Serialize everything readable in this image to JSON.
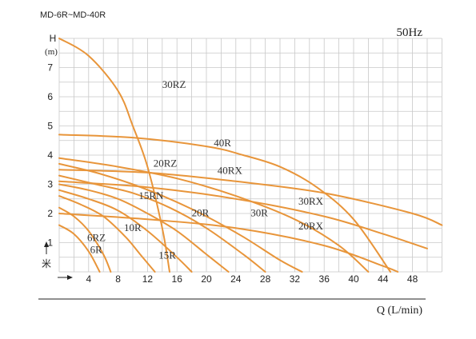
{
  "header": {
    "model_range": "MD-6R~MD-40R",
    "frequency": "50Hz"
  },
  "colors": {
    "curve": "#e8953a",
    "grid": "#c8c8c8",
    "text": "#222222"
  },
  "chart_data": {
    "type": "line",
    "title": "",
    "ylabel": "H",
    "yunit": "(m)",
    "ymeter_glyph": "米",
    "xlabel": "Q (L/min)",
    "xlim": [
      0,
      52
    ],
    "ylim": [
      0,
      8
    ],
    "xticks": [
      4,
      8,
      12,
      16,
      20,
      24,
      28,
      32,
      36,
      40,
      44,
      48
    ],
    "yticks": [
      1,
      2,
      3,
      4,
      5,
      6,
      7
    ],
    "grid": true,
    "series": [
      {
        "name": "6R",
        "x": [
          0,
          2,
          4,
          5.5
        ],
        "y": [
          1.6,
          1.3,
          0.7,
          0
        ]
      },
      {
        "name": "6RZ",
        "x": [
          0,
          2,
          4,
          6,
          7
        ],
        "y": [
          2.2,
          1.9,
          1.4,
          0.6,
          0
        ]
      },
      {
        "name": "10R",
        "x": [
          0,
          3,
          6,
          9,
          11,
          13
        ],
        "y": [
          2.6,
          2.3,
          1.9,
          1.2,
          0.6,
          0
        ]
      },
      {
        "name": "15R",
        "x": [
          0,
          4,
          8,
          12,
          16,
          18
        ],
        "y": [
          2.8,
          2.5,
          2.1,
          1.4,
          0.5,
          0
        ]
      },
      {
        "name": "15RN",
        "x": [
          0,
          4,
          8,
          12,
          16,
          20,
          23
        ],
        "y": [
          3.0,
          2.8,
          2.5,
          2.0,
          1.4,
          0.6,
          0
        ]
      },
      {
        "name": "20R",
        "x": [
          0,
          5,
          10,
          15,
          20,
          25,
          28
        ],
        "y": [
          3.3,
          3.0,
          2.7,
          2.2,
          1.5,
          0.6,
          0
        ]
      },
      {
        "name": "20RZ",
        "x": [
          0,
          5,
          10,
          15,
          20,
          25,
          30,
          33
        ],
        "y": [
          3.7,
          3.4,
          3.0,
          2.5,
          1.9,
          1.2,
          0.4,
          0
        ]
      },
      {
        "name": "30R",
        "x": [
          0,
          8,
          16,
          24,
          32,
          38,
          42
        ],
        "y": [
          3.9,
          3.6,
          3.2,
          2.6,
          1.8,
          0.9,
          0
        ]
      },
      {
        "name": "30RZ",
        "x": [
          0,
          4,
          8,
          10,
          12,
          14,
          15
        ],
        "y": [
          8.0,
          7.4,
          6.2,
          5.0,
          3.6,
          1.5,
          0
        ]
      },
      {
        "name": "40R",
        "x": [
          0,
          10,
          20,
          25,
          30,
          35,
          40,
          45
        ],
        "y": [
          4.7,
          4.6,
          4.3,
          4.0,
          3.6,
          2.9,
          1.8,
          0
        ]
      },
      {
        "name": "40RX",
        "x": [
          0,
          12,
          24,
          36,
          48,
          52
        ],
        "y": [
          3.5,
          3.4,
          3.1,
          2.7,
          2.0,
          1.6
        ]
      },
      {
        "name": "30RX",
        "x": [
          0,
          12,
          24,
          36,
          44,
          50
        ],
        "y": [
          3.1,
          2.9,
          2.5,
          1.9,
          1.3,
          0.8
        ]
      },
      {
        "name": "20RX",
        "x": [
          0,
          12,
          24,
          36,
          44,
          46
        ],
        "y": [
          2.0,
          1.8,
          1.5,
          0.9,
          0.2,
          0
        ]
      }
    ],
    "annotations": [
      {
        "text": "6R",
        "x": 4.2,
        "y": 0.65
      },
      {
        "text": "6RZ",
        "x": 3.8,
        "y": 1.05
      },
      {
        "text": "10R",
        "x": 8.8,
        "y": 1.4
      },
      {
        "text": "15R",
        "x": 13.5,
        "y": 0.45
      },
      {
        "text": "15RN",
        "x": 10.8,
        "y": 2.5
      },
      {
        "text": "20R",
        "x": 18.0,
        "y": 1.9
      },
      {
        "text": "20RZ",
        "x": 12.8,
        "y": 3.6
      },
      {
        "text": "30R",
        "x": 26.0,
        "y": 1.9
      },
      {
        "text": "30RZ",
        "x": 14.0,
        "y": 6.3
      },
      {
        "text": "40R",
        "x": 21.0,
        "y": 4.3
      },
      {
        "text": "40RX",
        "x": 21.5,
        "y": 3.35
      },
      {
        "text": "30RX",
        "x": 32.5,
        "y": 2.3
      },
      {
        "text": "20RX",
        "x": 32.5,
        "y": 1.45
      }
    ]
  }
}
